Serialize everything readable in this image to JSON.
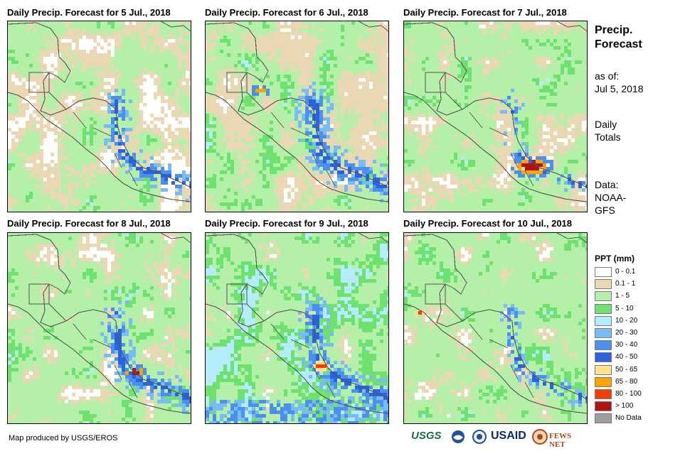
{
  "panels": [
    {
      "title": "Daily Precip. Forecast for 5 Jul., 2018"
    },
    {
      "title": "Daily Precip. Forecast for 6 Jul., 2018"
    },
    {
      "title": "Daily Precip. Forecast for 7 Jul., 2018"
    },
    {
      "title": "Daily Precip. Forecast for 8 Jul., 2018"
    },
    {
      "title": "Daily Precip. Forecast for 9 Jul., 2018"
    },
    {
      "title": "Daily Precip. Forecast for 10 Jul., 2018"
    }
  ],
  "sidebar": {
    "heading_line1": "Precip.",
    "heading_line2": "Forecast",
    "asof_label": "as of:",
    "asof_date": "Jul 5, 2018",
    "totals_line1": "Daily",
    "totals_line2": "Totals",
    "data_line1": "Data:",
    "data_line2": "NOAA-",
    "data_line3": "GFS"
  },
  "legend": {
    "title": "PPT (mm)",
    "items": [
      {
        "label": "0 - 0.1",
        "color": "#ffffff"
      },
      {
        "label": "0.1 - 1",
        "color": "#ead8b4"
      },
      {
        "label": "1 - 5",
        "color": "#b4f0a8"
      },
      {
        "label": "5 - 10",
        "color": "#6ee26e"
      },
      {
        "label": "10 - 20",
        "color": "#b4ecfc"
      },
      {
        "label": "20 - 30",
        "color": "#78bcf6"
      },
      {
        "label": "30 - 40",
        "color": "#4a90ee"
      },
      {
        "label": "40 - 50",
        "color": "#2a62e0"
      },
      {
        "label": "50 - 65",
        "color": "#fee28c"
      },
      {
        "label": "65 - 80",
        "color": "#fca400"
      },
      {
        "label": "80 - 100",
        "color": "#fc3c00"
      },
      {
        "label": "> 100",
        "color": "#b01414"
      },
      {
        "label": "No Data",
        "color": "#9e9e9e"
      }
    ]
  },
  "credit": "Map produced by USGS/EROS",
  "logos": {
    "usgs": "USGS",
    "usaid": "USAID",
    "fewsnet": "FEWS NET"
  }
}
